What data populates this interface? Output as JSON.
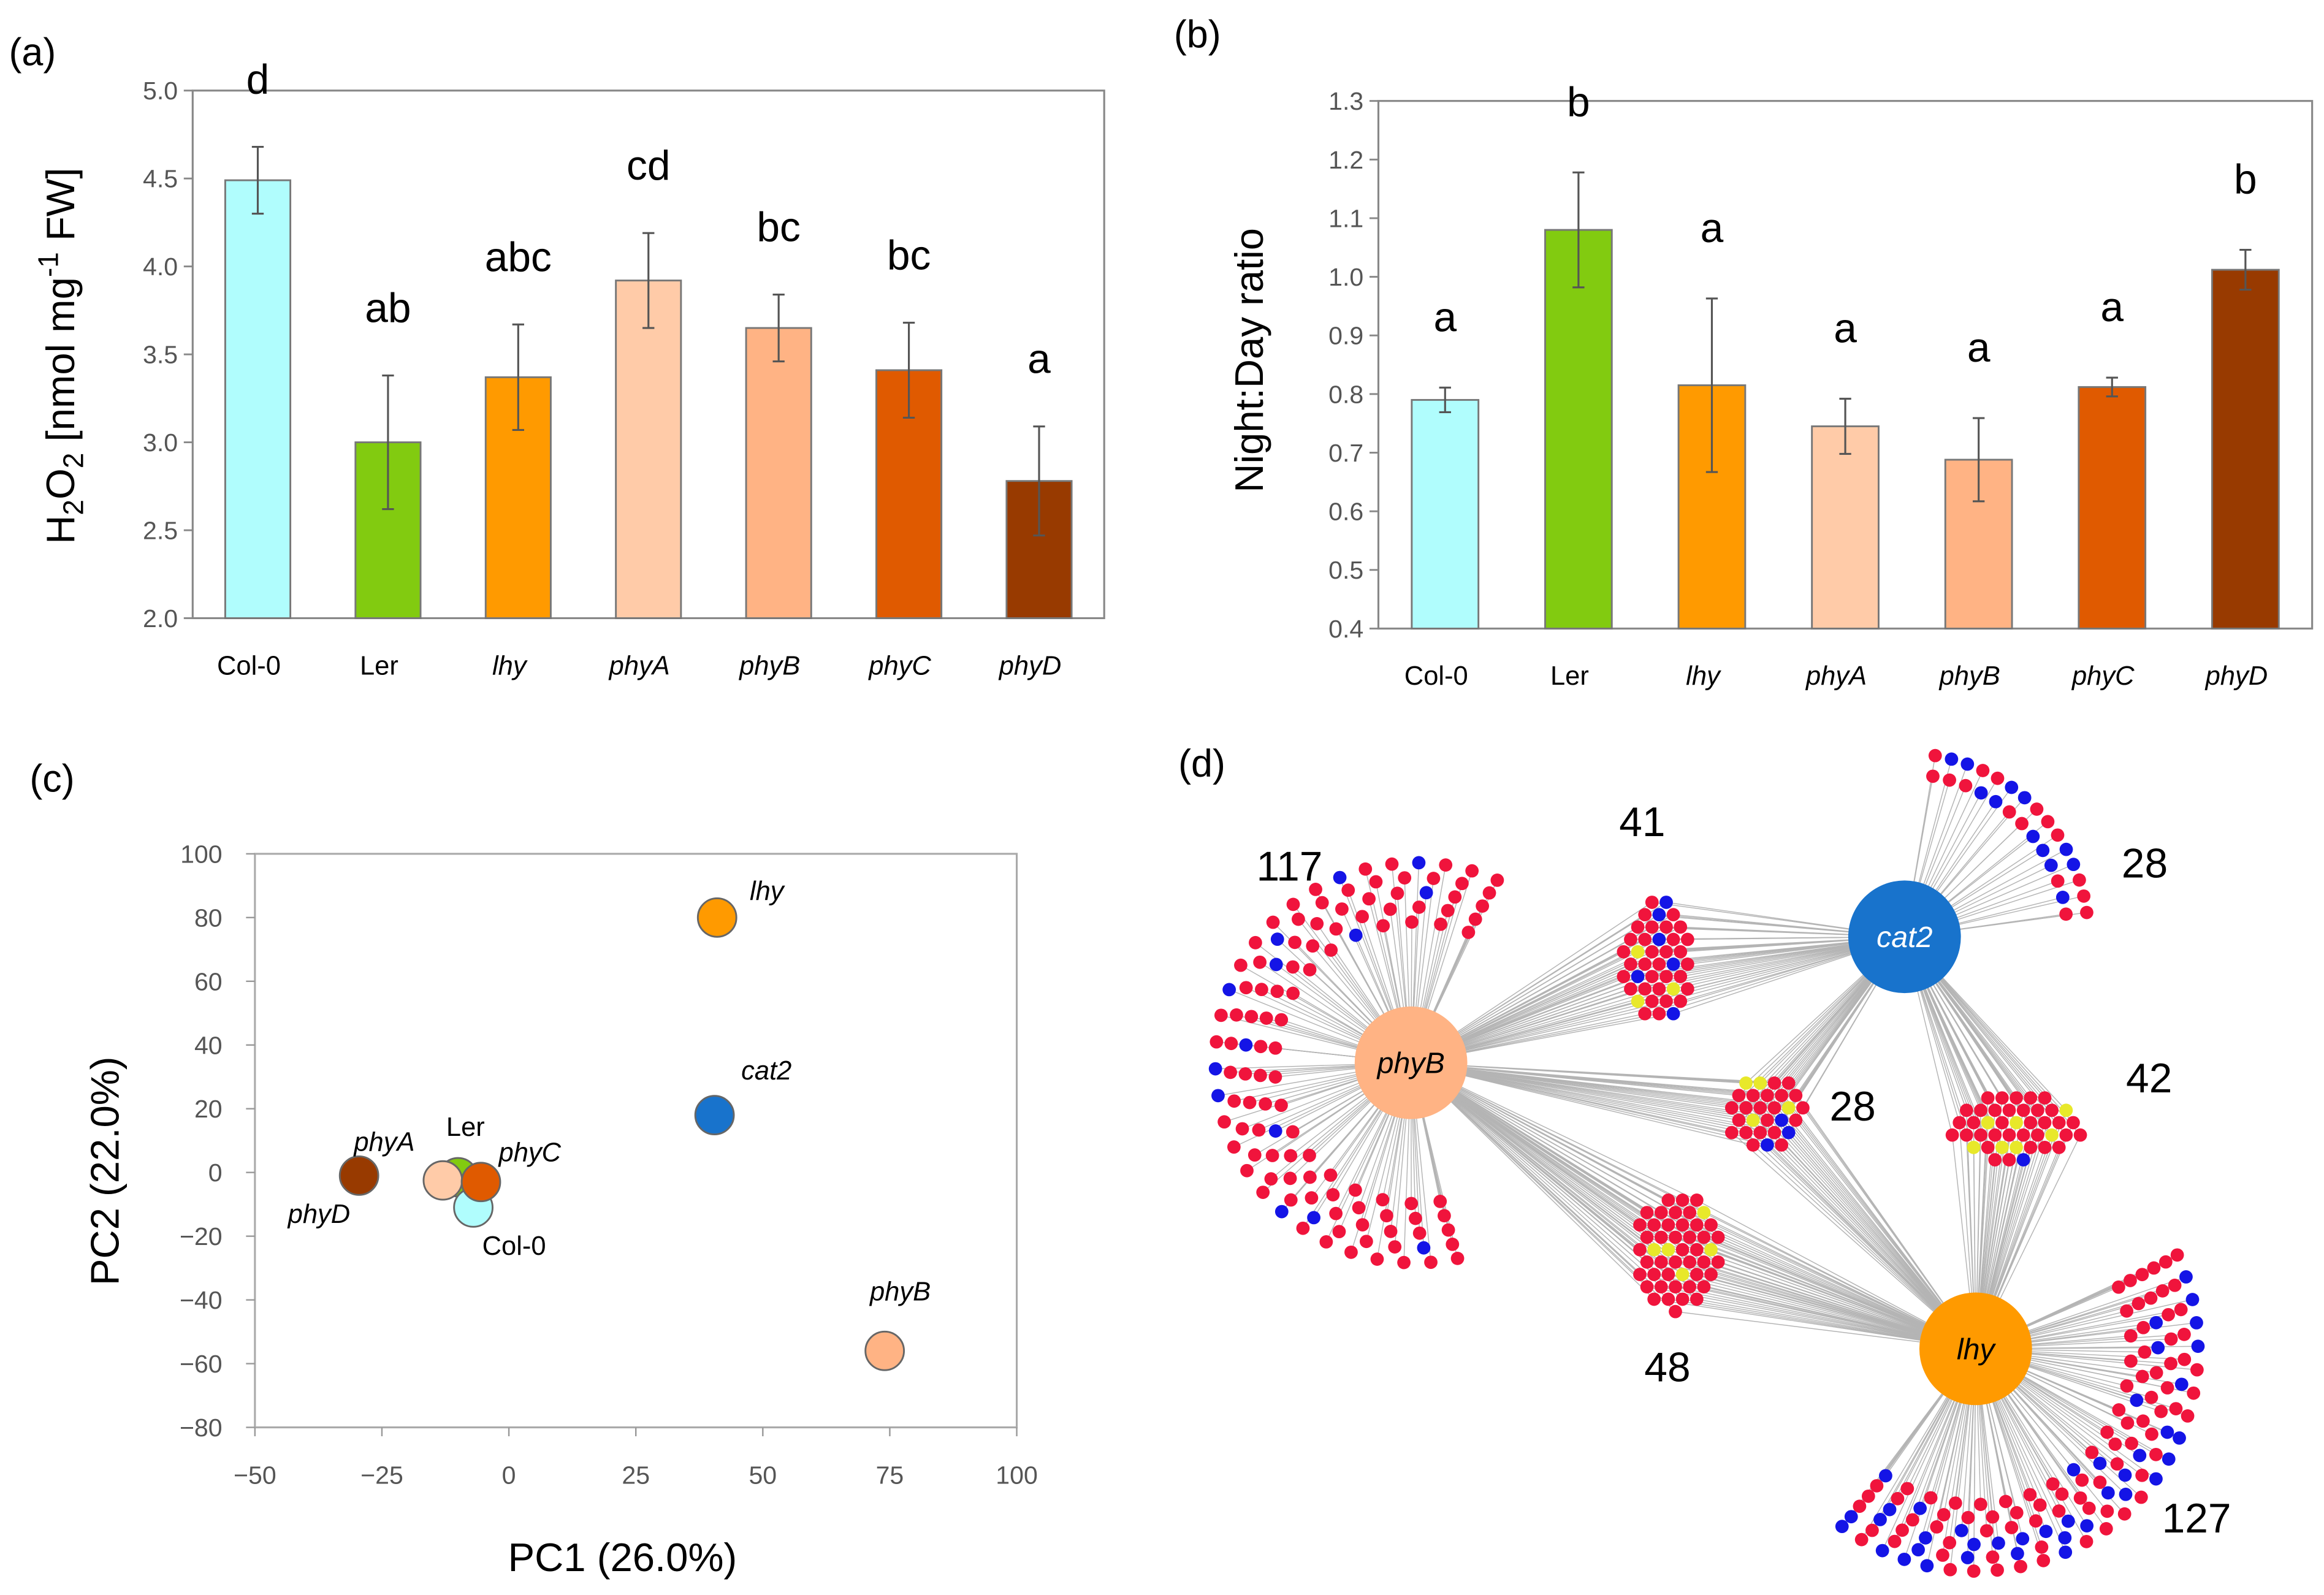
{
  "panels": {
    "a": "(a)",
    "b": "(b)",
    "c": "(c)",
    "d": "(d)"
  },
  "chart_data": [
    {
      "id": "a",
      "type": "bar",
      "categories": [
        "Col-0",
        "Ler",
        "lhy",
        "phyA",
        "phyB",
        "phyC",
        "phyD"
      ],
      "italic_categories": [
        false,
        false,
        true,
        true,
        true,
        true,
        true
      ],
      "values": [
        4.49,
        3.0,
        3.37,
        3.92,
        3.65,
        3.41,
        2.78
      ],
      "errors": [
        0.19,
        0.38,
        0.3,
        0.27,
        0.19,
        0.27,
        0.31
      ],
      "letters": [
        "d",
        "ab",
        "abc",
        "cd",
        "bc",
        "bc",
        "a"
      ],
      "colors": [
        "#b0fdfd",
        "#82cb10",
        "#ff9a00",
        "#ffcba8",
        "#ffb384",
        "#e05a00",
        "#983a00"
      ],
      "ylabel": {
        "main": "H",
        "sub1": "2",
        "mid": "O",
        "sub2": "2",
        "unit": " [nmol mg",
        "sup": "-1",
        "end": " FW]"
      },
      "ylim": [
        2.0,
        5.0
      ],
      "yticks": [
        "2.0",
        "2.5",
        "3.0",
        "3.5",
        "4.0",
        "4.5",
        "5.0"
      ]
    },
    {
      "id": "b",
      "type": "bar",
      "categories": [
        "Col-0",
        "Ler",
        "lhy",
        "phyA",
        "phyB",
        "phyC",
        "phyD"
      ],
      "italic_categories": [
        false,
        false,
        true,
        true,
        true,
        true,
        true
      ],
      "values": [
        0.79,
        1.08,
        0.815,
        0.745,
        0.688,
        0.812,
        1.012
      ],
      "errors": [
        0.021,
        0.098,
        0.148,
        0.047,
        0.071,
        0.016,
        0.034
      ],
      "letters": [
        "a",
        "b",
        "a",
        "a",
        "a",
        "a",
        "b"
      ],
      "colors": [
        "#b0fdfd",
        "#82cb10",
        "#ff9a00",
        "#ffcba8",
        "#ffb384",
        "#e05a00",
        "#983a00"
      ],
      "ylabel": "Night:Day ratio",
      "ylim": [
        0.4,
        1.3
      ],
      "yticks": [
        "0.4",
        "0.5",
        "0.6",
        "0.7",
        "0.8",
        "0.9",
        "1.0",
        "1.1",
        "1.2",
        "1.3"
      ]
    },
    {
      "id": "c",
      "type": "scatter",
      "xlabel": "PC1 (26.0%)",
      "ylabel": "PC2 (22.0%)",
      "xlim": [
        -50,
        100
      ],
      "ylim": [
        -80,
        100
      ],
      "xticks": [
        "−50",
        "−25",
        "0",
        "25",
        "50",
        "75",
        "100"
      ],
      "yticks": [
        "−80",
        "−60",
        "−40",
        "−20",
        "0",
        "20",
        "40",
        "60",
        "80",
        "100"
      ],
      "points": [
        {
          "label": "lhy",
          "x": 41,
          "y": 80,
          "color": "#ff9a00",
          "italic": true
        },
        {
          "label": "cat2",
          "x": 40.5,
          "y": 18,
          "color": "#1873cc",
          "italic": true
        },
        {
          "label": "phyB",
          "x": 74,
          "y": -56,
          "color": "#ffb384",
          "italic": true
        },
        {
          "label": "phyD",
          "x": -29.5,
          "y": -1,
          "color": "#983a00",
          "italic": true
        },
        {
          "label": "Ler",
          "x": -10,
          "y": -1.5,
          "color": "#82cb10",
          "italic": false
        },
        {
          "label": "Col-0",
          "x": -7,
          "y": -11,
          "color": "#b0fdfd",
          "italic": false
        },
        {
          "label": "phyA",
          "x": -13,
          "y": -2.5,
          "color": "#ffcba8",
          "italic": true
        },
        {
          "label": "phyC",
          "x": -5.5,
          "y": -3,
          "color": "#e05a00",
          "italic": true
        }
      ]
    },
    {
      "id": "d",
      "type": "network",
      "hubs": [
        {
          "id": "phyB",
          "label": "phyB",
          "color": "#ffb384"
        },
        {
          "id": "cat2",
          "label": "cat2",
          "color": "#1873cc"
        },
        {
          "id": "lhy",
          "label": "lhy",
          "color": "#ff9a00"
        }
      ],
      "clusters": [
        {
          "id": "phyB_only",
          "count": 117,
          "label": "117",
          "connects": [
            "phyB"
          ],
          "blue": 14,
          "yellow": 0
        },
        {
          "id": "phyB_cat2",
          "count": 41,
          "label": "41",
          "connects": [
            "phyB",
            "cat2"
          ],
          "blue": 6,
          "yellow": 3
        },
        {
          "id": "cat2_only",
          "count": 28,
          "label": "28",
          "connects": [
            "cat2"
          ],
          "blue": 12,
          "yellow": 0
        },
        {
          "id": "all_three",
          "count": 28,
          "label": "28",
          "connects": [
            "phyB",
            "cat2",
            "lhy"
          ],
          "blue": 3,
          "yellow": 4
        },
        {
          "id": "cat2_lhy",
          "count": 42,
          "label": "42",
          "connects": [
            "cat2",
            "lhy"
          ],
          "blue": 1,
          "yellow": 7
        },
        {
          "id": "phyB_lhy",
          "count": 48,
          "label": "48",
          "connects": [
            "phyB",
            "lhy"
          ],
          "blue": 0,
          "yellow": 5
        },
        {
          "id": "lhy_only",
          "count": 127,
          "label": "127",
          "connects": [
            "lhy"
          ],
          "blue": 40,
          "yellow": 0
        }
      ],
      "node_colors": {
        "red": "#f0143c",
        "blue": "#1414e6",
        "yellow": "#e8e82a"
      }
    }
  ]
}
